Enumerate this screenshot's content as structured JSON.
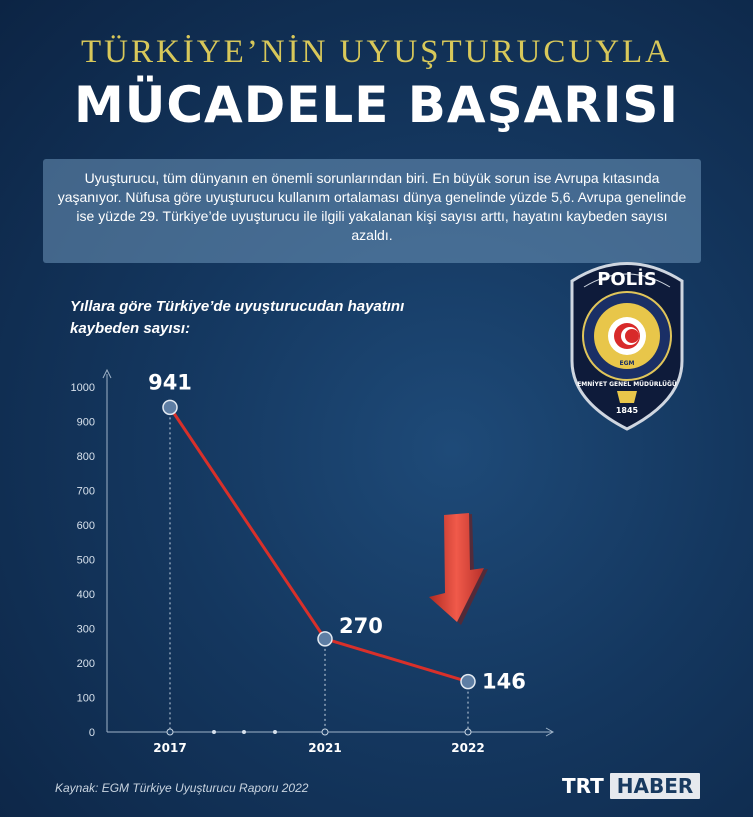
{
  "header": {
    "title_top": "TÜRKİYE’NİN UYUŞTURUCUYLA",
    "title_main": "MÜCADELE BAŞARISI"
  },
  "intro_text": "Uyuşturucu, tüm dünyanın en önemli sorunlarından biri. En büyük sorun ise Avrupa kıtasında yaşanıyor. Nüfusa göre uyuşturucu kullanım ortalaması dünya genelinde yüzde 5,6. Avrupa genelinde ise yüzde 29. Türkiye’de uyuşturucu ile ilgili yakalanan kişi sayısı arttı, hayatını kaybeden sayısı azaldı.",
  "badge": {
    "top_text": "POLİS",
    "ring_text": "EMNİYET GENEL MÜDÜRLÜĞÜ",
    "center_text": "EGM",
    "year": "1845"
  },
  "source": "Kaynak: EGM Türkiye Uyuşturucu Raporu 2022",
  "logo": {
    "part1": "TRT",
    "part2": "HABER"
  },
  "colors": {
    "line": "#d8302a",
    "title_gold": "#d8c85a",
    "arrow": "#e0443a"
  },
  "chart_data": {
    "type": "line",
    "title": "Yıllara göre Türkiye’de uyuşturucudan hayatını kaybeden sayısı:",
    "x": [
      "2017",
      "2021",
      "2022"
    ],
    "values": [
      941,
      270,
      146
    ],
    "data_labels": [
      "941",
      "270",
      "146"
    ],
    "ylim": [
      0,
      1000
    ],
    "yticks": [
      "0",
      "100",
      "200",
      "300",
      "400",
      "500",
      "600",
      "700",
      "800",
      "900",
      "1000"
    ],
    "grid": false
  }
}
